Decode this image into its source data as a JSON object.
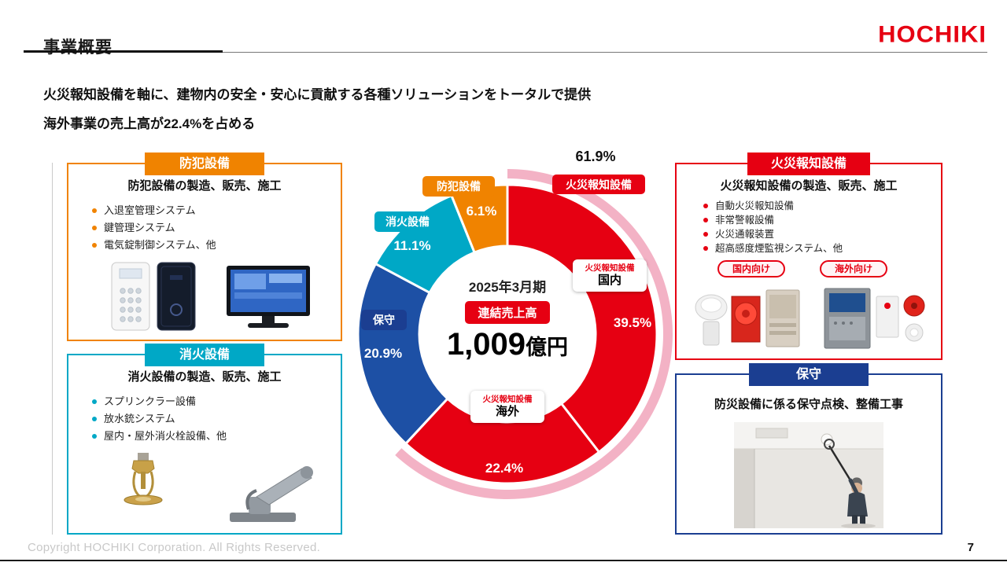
{
  "page": {
    "title": "事業概要",
    "logo": "HOCHIKI",
    "intro": {
      "line1": "火災報知設備を軸に、建物内の安全・安心に貢献する各種ソリューションをトータルで提供",
      "line2": "海外事業の売上高が22.4%を占める"
    },
    "footer": {
      "copyright": "Copyright HOCHIKI Corporation. All Rights Reserved.",
      "page_number": "7"
    },
    "brand_color": "#e60012"
  },
  "panels": {
    "security": {
      "ribbon": "防犯設備",
      "heading": "防犯設備の製造、販売、施工",
      "bullets": [
        "入退室管理システム",
        "鍵管理システム",
        "電気錠制御システム、他"
      ],
      "accent_color": "#f08300"
    },
    "extinguishing": {
      "ribbon": "消火設備",
      "heading": "消火設備の製造、販売、施工",
      "bullets": [
        "スプリンクラー設備",
        "放水銃システム",
        "屋内・屋外消火栓設備、他"
      ],
      "accent_color": "#00a8c6"
    },
    "fire_alarm": {
      "ribbon": "火災報知設備",
      "heading": "火災報知設備の製造、販売、施工",
      "bullets": [
        "自動火災報知設備",
        "非常警報設備",
        "火災通報装置",
        "超高感度煙監視システム、他"
      ],
      "tags": [
        "国内向け",
        "海外向け"
      ],
      "accent_color": "#e60012"
    },
    "maintenance": {
      "ribbon": "保守",
      "heading": "防災設備に係る保守点検、整備工事",
      "accent_color": "#1b3e91"
    }
  },
  "chart_data": {
    "type": "pie",
    "subtype": "donut",
    "period": "2025年3月期",
    "center_badge": "連結売上高",
    "total_value": "1,009",
    "total_unit": "億円",
    "segments": [
      {
        "label": "火災報知設備（国内）",
        "value": 39.5,
        "color": "#e60012"
      },
      {
        "label": "火災報知設備（海外）",
        "value": 22.4,
        "color": "#e60012"
      },
      {
        "label": "保守",
        "value": 20.9,
        "color": "#1d50a5"
      },
      {
        "label": "消火設備",
        "value": 11.1,
        "color": "#00a8c6"
      },
      {
        "label": "防犯設備",
        "value": 6.1,
        "color": "#f08300"
      }
    ],
    "group": {
      "label": "火災報知設備",
      "value": 61.9,
      "pct_display": "61.9%"
    },
    "highlight_arc": {
      "from_pct": 0,
      "to_pct": 61.9,
      "color": "#f3b2c5"
    },
    "badges": {
      "fire_alarm": "火災報知設備",
      "maintenance": "保守",
      "extinguishing": "消火設備",
      "security": "防犯設備"
    },
    "callouts": {
      "domestic": {
        "group": "火災報知設備",
        "name": "国内",
        "pct": "39.5%"
      },
      "overseas": {
        "group": "火災報知設備",
        "name": "海外",
        "pct": "22.4%"
      }
    },
    "pct_labels": {
      "maintenance": "20.9%",
      "extinguishing": "11.1%",
      "security": "6.1%"
    }
  }
}
